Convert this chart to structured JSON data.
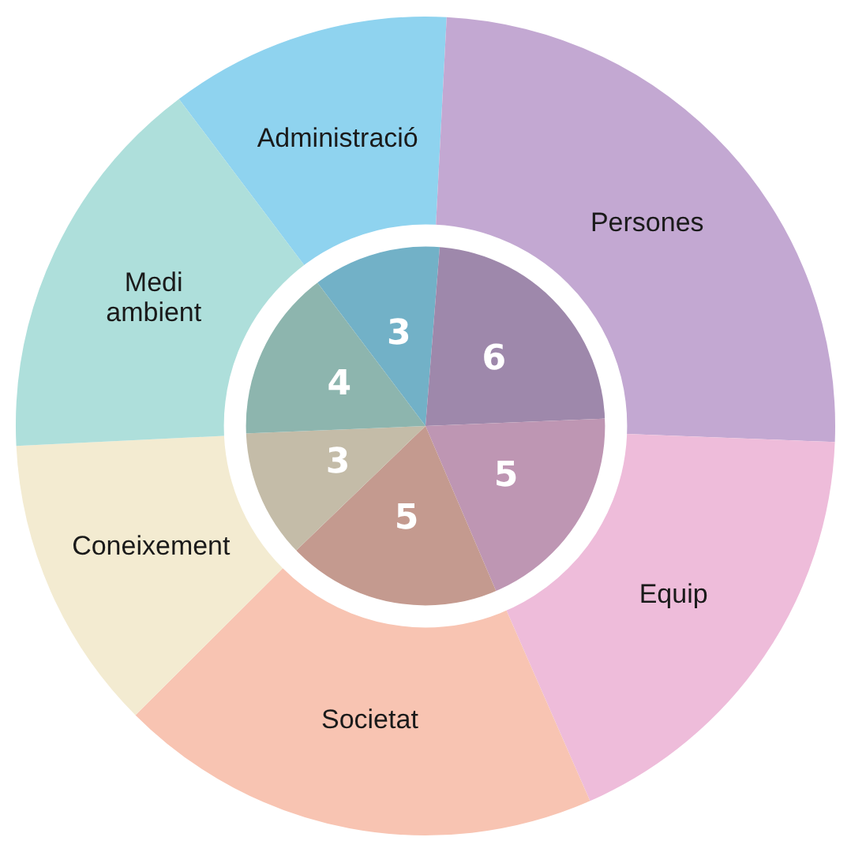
{
  "chart_data": {
    "type": "pie",
    "categories": [
      "Administració",
      "Persones",
      "Equip",
      "Societat",
      "Coneixement",
      "Medi ambient"
    ],
    "series": [
      {
        "values": [
          11.1,
          24.8,
          17.8,
          19.1,
          11.7,
          15.5
        ],
        "colors": [
          "#8fd3ef",
          "#c3a8d2",
          "#eebcda",
          "#f8c4b2",
          "#f3ebd1",
          "#aedfdb"
        ]
      },
      {
        "values": [
          3,
          6,
          5,
          5,
          3,
          4
        ],
        "value_labels": [
          "3",
          "6",
          "5",
          "5",
          "3",
          "4"
        ],
        "colors": [
          "#72b1c7",
          "#9e88ab",
          "#be96b3",
          "#c49a8f",
          "#c4bca8",
          "#8db5ae"
        ]
      }
    ],
    "legend": false
  }
}
